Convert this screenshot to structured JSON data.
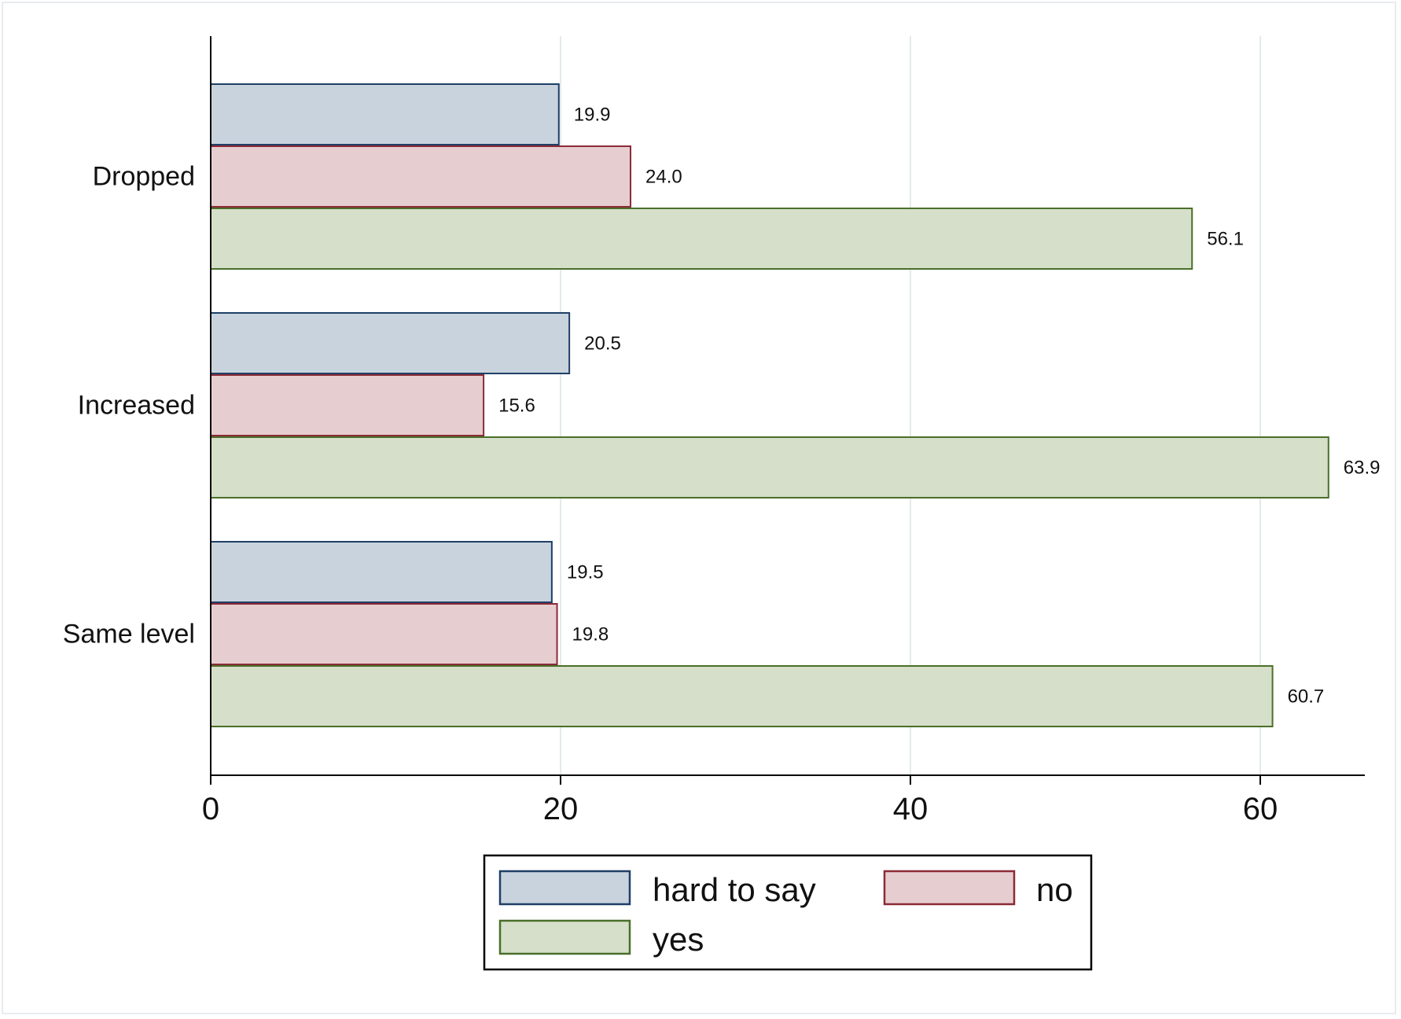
{
  "chart_data": {
    "type": "bar",
    "orientation": "horizontal",
    "categories": [
      "Dropped",
      "Increased",
      "Same level"
    ],
    "series": [
      {
        "name": "hard to say",
        "values": [
          19.9,
          20.5,
          19.5
        ],
        "labels": [
          "19.9",
          "20.5",
          "19.5"
        ],
        "fill": "#c8d3dd",
        "stroke": "#1f3f66"
      },
      {
        "name": "no",
        "values": [
          24.0,
          15.6,
          19.8
        ],
        "labels": [
          "24.0",
          "15.6",
          "19.8"
        ],
        "fill": "#e6cdd0",
        "stroke": "#8b2a36"
      },
      {
        "name": "yes",
        "values": [
          56.1,
          63.9,
          60.7
        ],
        "labels": [
          "56.1",
          "63.9",
          "60.7"
        ],
        "fill": "#d6dfc9",
        "stroke": "#4a6f2a"
      }
    ],
    "xlim": [
      0,
      66
    ],
    "xticks": [
      0,
      20,
      40,
      60
    ],
    "xtick_labels": [
      "0",
      "20",
      "40",
      "60"
    ],
    "grid": true,
    "legend_position": "bottom",
    "title": "",
    "xlabel": "",
    "ylabel": ""
  }
}
